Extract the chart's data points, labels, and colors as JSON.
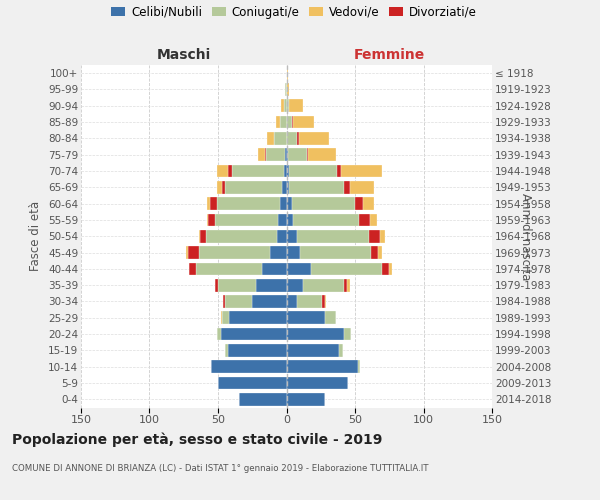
{
  "age_groups": [
    "0-4",
    "5-9",
    "10-14",
    "15-19",
    "20-24",
    "25-29",
    "30-34",
    "35-39",
    "40-44",
    "45-49",
    "50-54",
    "55-59",
    "60-64",
    "65-69",
    "70-74",
    "75-79",
    "80-84",
    "85-89",
    "90-94",
    "95-99",
    "100+"
  ],
  "birth_years": [
    "2014-2018",
    "2009-2013",
    "2004-2008",
    "1999-2003",
    "1994-1998",
    "1989-1993",
    "1984-1988",
    "1979-1983",
    "1974-1978",
    "1969-1973",
    "1964-1968",
    "1959-1963",
    "1954-1958",
    "1949-1953",
    "1944-1948",
    "1939-1943",
    "1934-1938",
    "1929-1933",
    "1924-1928",
    "1919-1923",
    "≤ 1918"
  ],
  "maschi": {
    "celibi": [
      35,
      50,
      55,
      43,
      48,
      42,
      25,
      22,
      18,
      12,
      7,
      6,
      5,
      3,
      2,
      1,
      0,
      0,
      0,
      0,
      0
    ],
    "coniugati": [
      0,
      0,
      0,
      2,
      3,
      5,
      20,
      28,
      48,
      52,
      52,
      46,
      46,
      42,
      38,
      14,
      9,
      5,
      2,
      1,
      0
    ],
    "vedovi": [
      0,
      0,
      0,
      0,
      0,
      1,
      0,
      0,
      0,
      1,
      1,
      1,
      2,
      4,
      8,
      5,
      5,
      3,
      2,
      0,
      0
    ],
    "divorziati": [
      0,
      0,
      0,
      0,
      0,
      0,
      1,
      2,
      5,
      8,
      4,
      5,
      5,
      2,
      3,
      1,
      0,
      0,
      0,
      0,
      0
    ]
  },
  "femmine": {
    "nubili": [
      28,
      45,
      52,
      38,
      42,
      28,
      8,
      12,
      18,
      10,
      8,
      5,
      4,
      2,
      2,
      1,
      0,
      0,
      0,
      0,
      0
    ],
    "coniugate": [
      0,
      0,
      2,
      3,
      5,
      8,
      18,
      30,
      52,
      52,
      52,
      48,
      46,
      40,
      35,
      14,
      8,
      4,
      2,
      0,
      0
    ],
    "vedove": [
      0,
      0,
      0,
      0,
      0,
      0,
      1,
      2,
      2,
      3,
      4,
      5,
      8,
      18,
      30,
      20,
      22,
      15,
      10,
      2,
      1
    ],
    "divorziate": [
      0,
      0,
      0,
      0,
      0,
      0,
      2,
      2,
      5,
      5,
      8,
      8,
      6,
      4,
      3,
      1,
      1,
      1,
      0,
      0,
      0
    ]
  },
  "colors": {
    "celibi": "#3d72aa",
    "coniugati": "#b5c99a",
    "vedovi": "#f0c060",
    "divorziati": "#cc2222"
  },
  "xlim": 150,
  "title": "Popolazione per età, sesso e stato civile - 2019",
  "subtitle": "COMUNE DI ANNONE DI BRIANZA (LC) - Dati ISTAT 1° gennaio 2019 - Elaborazione TUTTITALIA.IT",
  "xlabel_left": "Maschi",
  "xlabel_right": "Femmine",
  "ylabel_left": "Fasce di età",
  "ylabel_right": "Anni di nascita",
  "legend_labels": [
    "Celibi/Nubili",
    "Coniugati/e",
    "Vedovi/e",
    "Divorziati/e"
  ],
  "bg_color": "#f0f0f0",
  "plot_bg_color": "#ffffff"
}
